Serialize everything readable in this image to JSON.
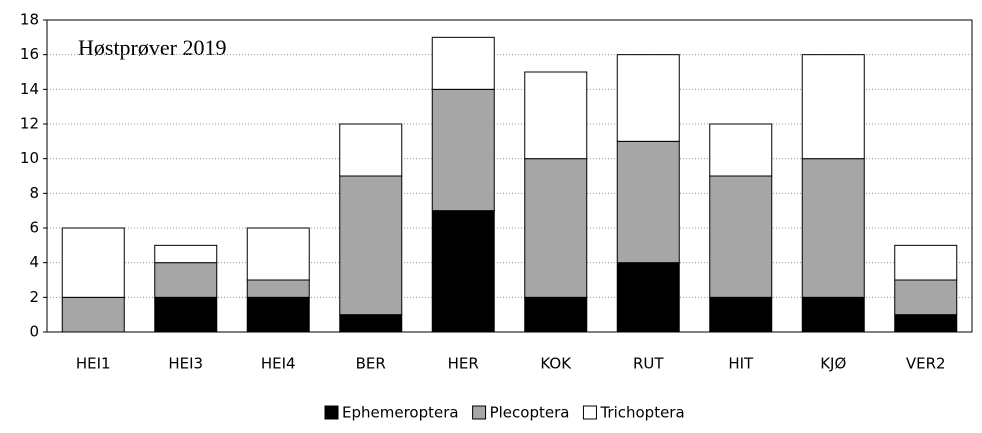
{
  "chart_data": {
    "type": "stacked_bar",
    "annotation": "Høstprøver 2019",
    "categories": [
      "HEI1",
      "HEI3",
      "HEI4",
      "BER",
      "HER",
      "KOK",
      "RUT",
      "HIT",
      "KJØ",
      "VER2"
    ],
    "series": [
      {
        "name": "Ephemeroptera",
        "color": "#000000",
        "values": [
          0,
          2,
          2,
          1,
          7,
          2,
          4,
          2,
          2,
          1
        ]
      },
      {
        "name": "Plecoptera",
        "color": "#a6a6a6",
        "values": [
          2,
          2,
          1,
          8,
          7,
          8,
          7,
          7,
          8,
          2
        ]
      },
      {
        "name": "Trichoptera",
        "color": "#ffffff",
        "values": [
          4,
          1,
          3,
          3,
          3,
          5,
          5,
          3,
          6,
          2
        ]
      }
    ],
    "ylim": [
      0,
      18
    ],
    "yticks": [
      0,
      2,
      4,
      6,
      8,
      10,
      12,
      14,
      16,
      18
    ],
    "grid": true,
    "legend": "bottom"
  }
}
